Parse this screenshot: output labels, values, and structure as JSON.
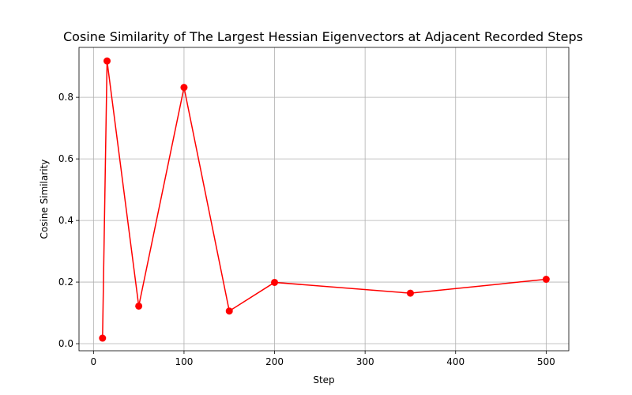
{
  "chart_data": {
    "type": "line",
    "title": "Cosine Similarity of The Largest Hessian Eigenvectors at Adjacent Recorded Steps",
    "xlabel": "Step",
    "ylabel": "Cosine Similarity",
    "xlim": [
      -16,
      525
    ],
    "ylim": [
      -0.023,
      0.962
    ],
    "xticks": [
      0,
      100,
      200,
      300,
      400,
      500
    ],
    "yticks": [
      0.0,
      0.2,
      0.4,
      0.6,
      0.8
    ],
    "xtick_labels": [
      "0",
      "100",
      "200",
      "300",
      "400",
      "500"
    ],
    "ytick_labels": [
      "0.0",
      "0.2",
      "0.4",
      "0.6",
      "0.8"
    ],
    "grid": true,
    "color": "#ff0000",
    "marker": "circle",
    "series": [
      {
        "x": [
          10,
          15,
          50,
          100,
          150,
          200,
          350,
          500
        ],
        "y": [
          0.018,
          0.918,
          0.122,
          0.832,
          0.106,
          0.199,
          0.164,
          0.209
        ]
      }
    ]
  }
}
